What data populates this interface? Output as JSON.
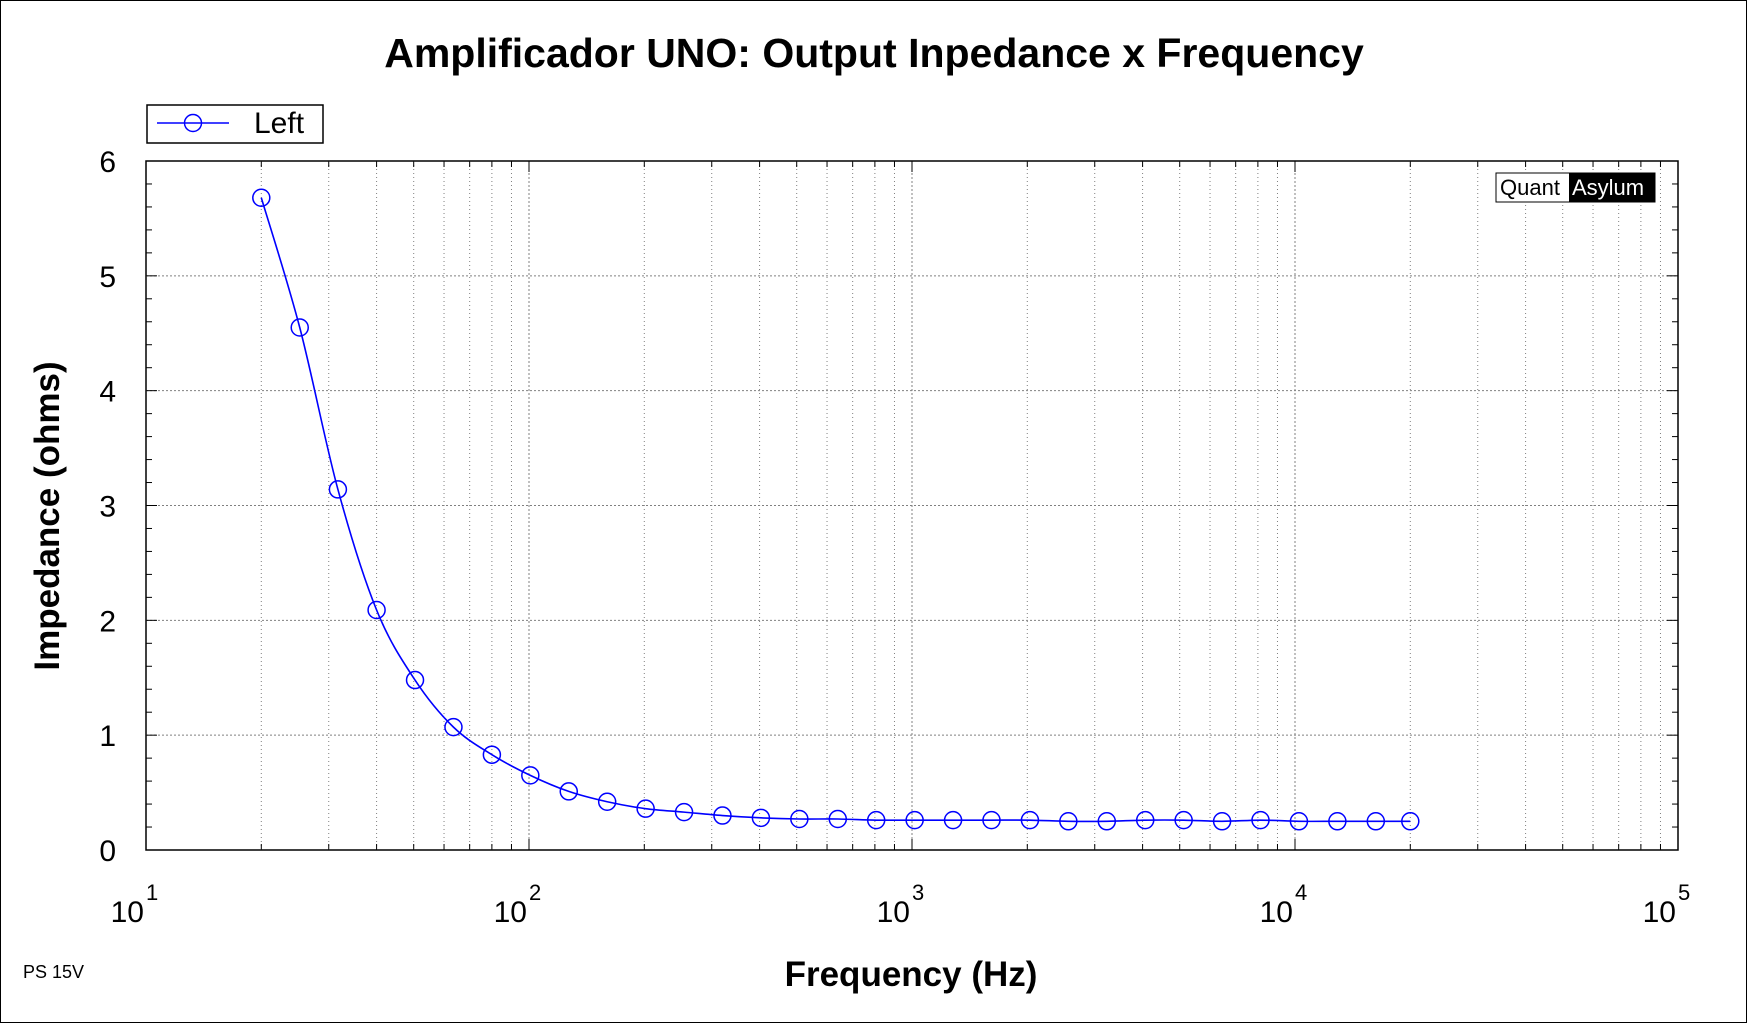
{
  "chart_data": {
    "type": "line",
    "title": "Amplificador UNO: Output Inpedance x Frequency",
    "xlabel": "Frequency (Hz)",
    "ylabel": "Impedance (ohms)",
    "x_scale": "log",
    "xlim": [
      10,
      100000
    ],
    "ylim": [
      0,
      6
    ],
    "x_ticks": [
      {
        "base": "10",
        "exp": "1"
      },
      {
        "base": "10",
        "exp": "2"
      },
      {
        "base": "10",
        "exp": "3"
      },
      {
        "base": "10",
        "exp": "4"
      },
      {
        "base": "10",
        "exp": "5"
      }
    ],
    "y_ticks": [
      "0",
      "1",
      "2",
      "3",
      "4",
      "5",
      "6"
    ],
    "grid": true,
    "legend_position": "top-left",
    "series": [
      {
        "name": "Left",
        "color": "#0000ff",
        "marker": "open-circle",
        "x": [
          20,
          25.2,
          31.7,
          40,
          50.4,
          63.5,
          80,
          100.8,
          127,
          160,
          201.6,
          254,
          320,
          403.2,
          508,
          640,
          806.3,
          1016,
          1280,
          1612.7,
          2032,
          2560,
          3225.4,
          4063.7,
          5120,
          6450.8,
          8127.5,
          10240,
          12901.6,
          16255,
          20000
        ],
        "y": [
          5.68,
          4.55,
          3.14,
          2.09,
          1.48,
          1.07,
          0.83,
          0.65,
          0.51,
          0.42,
          0.36,
          0.33,
          0.3,
          0.28,
          0.27,
          0.27,
          0.26,
          0.26,
          0.26,
          0.26,
          0.26,
          0.25,
          0.25,
          0.26,
          0.26,
          0.25,
          0.26,
          0.25,
          0.25,
          0.25,
          0.25
        ]
      }
    ]
  },
  "watermark": {
    "part1": "Quant",
    "part2": "Asylum"
  },
  "footnote": "PS 15V"
}
